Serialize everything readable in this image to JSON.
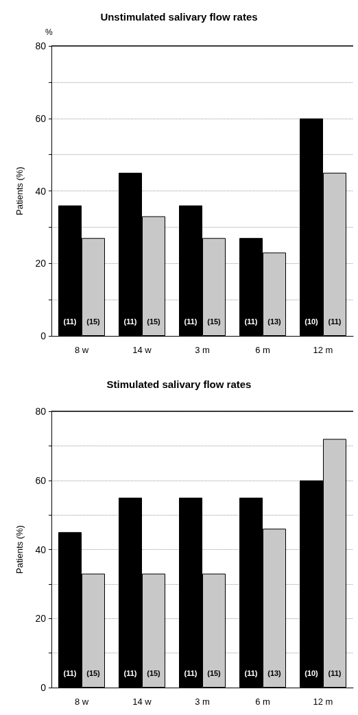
{
  "chart_data": [
    {
      "type": "bar",
      "title": "Unstimulated salivary flow rates",
      "ylabel": "Patients (%)",
      "annotations": [
        "%",
        {
          "text": "(11)",
          "x": "8 w",
          "y": 3
        },
        {
          "text": "(15)",
          "x": "8 w",
          "y": 3
        },
        {
          "text": "(11)",
          "x": "14 w",
          "y": 3
        },
        {
          "text": "(15)",
          "x": "14 w",
          "y": 3
        },
        {
          "text": "(11)",
          "x": "3 m",
          "y": 3
        },
        {
          "text": "(15)",
          "x": "3 m",
          "y": 3
        },
        {
          "text": "(11)",
          "x": "6 m",
          "y": 3
        },
        {
          "text": "(13)",
          "x": "6 m",
          "y": 3
        },
        {
          "text": "(10)",
          "x": "12 m",
          "y": 3
        },
        {
          "text": "(11)",
          "x": "12 m",
          "y": 3
        }
      ],
      "categories": [
        "8 w",
        "14 w",
        "3 m",
        "6 m",
        "12 m"
      ],
      "series": [
        {
          "color": "#000000",
          "values": [
            36,
            45,
            36,
            27,
            60
          ]
        },
        {
          "color": "#c8c8c8",
          "values": [
            27,
            33,
            27,
            23,
            45
          ]
        }
      ],
      "ylim": [
        0,
        80
      ],
      "yticks": [
        0,
        {
          "value": 10,
          "label": null
        },
        20,
        {
          "value": 30,
          "label": null
        },
        40,
        {
          "value": 50,
          "label": null
        },
        60,
        {
          "value": 70,
          "label": null
        },
        80
      ],
      "grid": "y"
    },
    {
      "type": "bar",
      "title": "Stimulated salivary flow rates",
      "ylabel": "Patients (%)",
      "annotations": [
        {
          "text": "(11)",
          "x": "8 w",
          "y": 3
        },
        {
          "text": "(15)",
          "x": "8 w",
          "y": 3
        },
        {
          "text": "(11)",
          "x": "14 w",
          "y": 3
        },
        {
          "text": "(15)",
          "x": "14 w",
          "y": 3
        },
        {
          "text": "(11)",
          "x": "3 m",
          "y": 3
        },
        {
          "text": "(15)",
          "x": "3 m",
          "y": 3
        },
        {
          "text": "(11)",
          "x": "6 m",
          "y": 3
        },
        {
          "text": "(13)",
          "x": "6 m",
          "y": 3
        },
        {
          "text": "(10)",
          "x": "12 m",
          "y": 3
        },
        {
          "text": "(11)",
          "x": "12 m",
          "y": 3
        }
      ],
      "categories": [
        "8 w",
        "14 w",
        "3 m",
        "6 m",
        "12 m"
      ],
      "series": [
        {
          "color": "#000000",
          "values": [
            45,
            55,
            55,
            55,
            60
          ]
        },
        {
          "color": "#c8c8c8",
          "values": [
            33,
            33,
            33,
            46,
            72
          ]
        }
      ],
      "ylim": [
        0,
        80
      ],
      "yticks": [
        0,
        {
          "value": 10,
          "label": null
        },
        20,
        {
          "value": 30,
          "label": null
        },
        40,
        {
          "value": 50,
          "label": null
        },
        60,
        {
          "value": 70,
          "label": null
        },
        80
      ],
      "grid": "y"
    }
  ]
}
